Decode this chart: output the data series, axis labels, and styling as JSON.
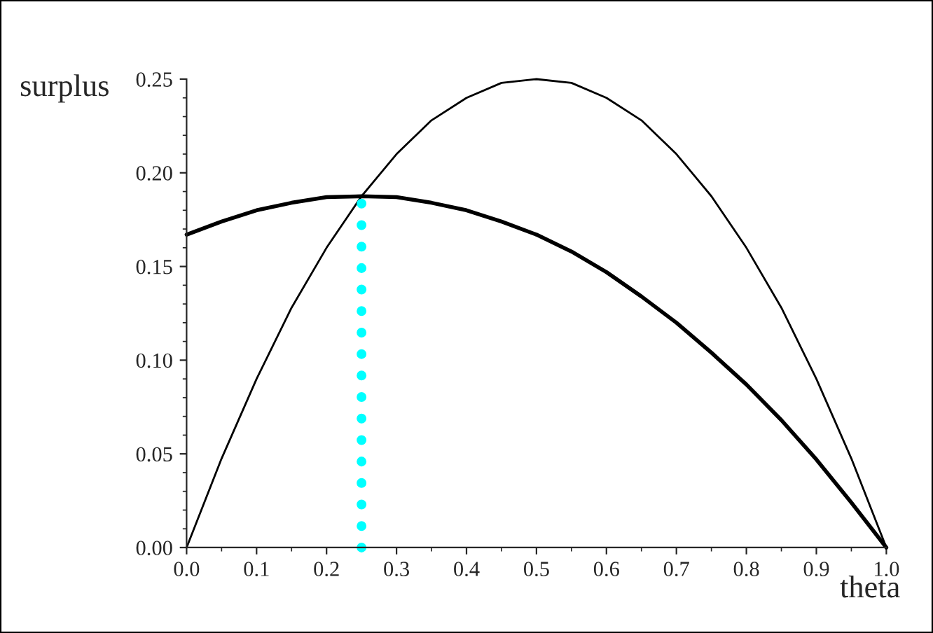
{
  "chart_data": {
    "type": "line",
    "xlabel": "theta",
    "ylabel": "surplus",
    "x": [
      0,
      0.05,
      0.1,
      0.15,
      0.2,
      0.25,
      0.3,
      0.35,
      0.4,
      0.45,
      0.5,
      0.55,
      0.6,
      0.65,
      0.7,
      0.75,
      0.8,
      0.85,
      0.9,
      0.95,
      1.0
    ],
    "series": [
      {
        "color": "#000000",
        "values": [
          0.167,
          0.174,
          0.18,
          0.184,
          0.187,
          0.1875,
          0.187,
          0.184,
          0.18,
          0.174,
          0.167,
          0.158,
          0.147,
          0.134,
          0.12,
          0.104,
          0.087,
          0.068,
          0.047,
          0.024,
          0
        ]
      },
      {
        "color": "#000000",
        "values": [
          0,
          0.0475,
          0.09,
          0.128,
          0.16,
          0.1875,
          0.21,
          0.228,
          0.24,
          0.248,
          0.25,
          0.248,
          0.24,
          0.228,
          0.21,
          0.1875,
          0.16,
          0.128,
          0.09,
          0.0475,
          0
        ]
      },
      {
        "color": "#00ffff",
        "x": [
          0.25,
          0.25
        ],
        "values": [
          0,
          0.1875
        ],
        "line_style": "dotted"
      }
    ],
    "xlim": [
      0,
      1.0
    ],
    "ylim": [
      0,
      0.25
    ],
    "xticks": [
      {
        "value": 0,
        "label": "0.0"
      },
      0.1,
      0.2,
      0.3,
      0.4,
      0.5,
      0.6,
      0.7,
      0.8,
      0.9,
      {
        "value": 1.0,
        "label": "1.0"
      }
    ],
    "yticks": [
      {
        "value": 0,
        "label": "0.00"
      },
      0.05,
      {
        "value": 0.1,
        "label": "0.10"
      },
      0.15,
      {
        "value": 0.2,
        "label": "0.20"
      },
      0.25
    ],
    "grid": false,
    "legend": false
  }
}
